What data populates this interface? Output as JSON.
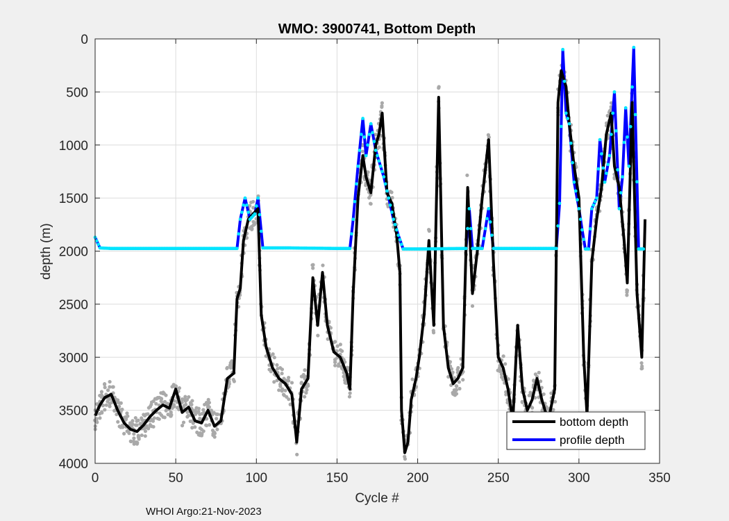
{
  "chart_data": {
    "type": "line",
    "title": "WMO: 3900741, Bottom Depth",
    "xlabel": "Cycle #",
    "ylabel": "depth (m)",
    "xlim": [
      0,
      350
    ],
    "ylim": [
      0,
      4000
    ],
    "y_reversed": true,
    "grid": true,
    "x_ticks": [
      0,
      50,
      100,
      150,
      200,
      250,
      300,
      350
    ],
    "y_ticks": [
      0,
      500,
      1000,
      1500,
      2000,
      2500,
      3000,
      3500,
      4000
    ],
    "legend_position": "bottom-right",
    "series": [
      {
        "name": "bottom depth",
        "color": "#000000",
        "x": [
          0,
          3,
          6,
          10,
          14,
          18,
          22,
          26,
          30,
          34,
          38,
          42,
          46,
          50,
          54,
          58,
          62,
          66,
          70,
          74,
          78,
          82,
          86,
          88,
          90,
          92,
          95,
          98,
          101,
          103,
          106,
          110,
          114,
          118,
          122,
          125,
          128,
          132,
          135,
          138,
          141,
          144,
          148,
          152,
          156,
          158,
          160,
          163,
          166,
          168,
          171,
          174,
          176,
          178,
          181,
          184,
          187,
          189,
          190,
          192,
          194,
          196,
          199,
          201,
          204,
          207,
          210,
          213,
          216,
          219,
          222,
          225,
          228,
          231,
          234,
          237,
          240,
          244,
          247,
          250,
          253,
          256,
          259,
          262,
          265,
          268,
          271,
          274,
          277,
          281,
          285,
          287,
          289,
          292,
          294,
          297,
          300,
          303,
          305,
          308,
          311,
          314,
          317,
          320,
          322,
          325,
          328,
          330,
          333,
          336,
          339,
          341
        ],
        "values": [
          3550,
          3450,
          3380,
          3350,
          3500,
          3620,
          3680,
          3700,
          3640,
          3560,
          3500,
          3450,
          3480,
          3300,
          3520,
          3470,
          3600,
          3620,
          3500,
          3650,
          3600,
          3200,
          3150,
          2450,
          2350,
          1900,
          1700,
          1650,
          1600,
          2600,
          2900,
          3100,
          3200,
          3250,
          3350,
          3800,
          3300,
          3200,
          2250,
          2700,
          2200,
          2700,
          2950,
          3000,
          3150,
          3300,
          2400,
          1500,
          1100,
          1300,
          1450,
          1000,
          900,
          700,
          1450,
          1550,
          1850,
          2200,
          3500,
          3900,
          3800,
          3400,
          3200,
          3000,
          2600,
          1900,
          2700,
          550,
          2700,
          3100,
          3250,
          3200,
          3100,
          1400,
          2400,
          2000,
          1500,
          950,
          2100,
          3000,
          3100,
          3300,
          3600,
          2700,
          3300,
          3500,
          3400,
          3200,
          3400,
          3600,
          3300,
          600,
          300,
          450,
          800,
          1200,
          1500,
          3000,
          3550,
          2100,
          1700,
          1400,
          900,
          700,
          1200,
          1400,
          1900,
          2300,
          600,
          2400,
          3000,
          1700
        ],
        "point_color": "#a9a9a9"
      },
      {
        "name": "profile depth",
        "color": "#0000ff",
        "x": [
          0,
          3,
          10,
          30,
          60,
          80,
          88,
          90,
          93,
          96,
          99,
          101,
          104,
          120,
          150,
          158,
          160,
          163,
          166,
          168,
          171,
          174,
          176,
          179,
          182,
          185,
          188,
          191,
          200,
          230,
          232,
          234,
          240,
          244,
          247,
          280,
          286,
          288,
          290,
          292,
          294,
          297,
          300,
          302,
          304,
          306,
          308,
          311,
          313,
          316,
          319,
          322,
          325,
          327,
          329,
          331,
          334,
          337,
          340
        ],
        "values": [
          1870,
          1970,
          1975,
          1975,
          1975,
          1975,
          1975,
          1700,
          1500,
          1700,
          1650,
          1500,
          1970,
          1970,
          1975,
          1975,
          1700,
          1200,
          750,
          1100,
          800,
          1050,
          1150,
          1300,
          1500,
          1700,
          1850,
          1980,
          1980,
          1975,
          1600,
          1975,
          1975,
          1600,
          1975,
          1975,
          1975,
          1550,
          100,
          700,
          800,
          1350,
          1600,
          1800,
          1980,
          1980,
          1600,
          1500,
          950,
          1350,
          1100,
          500,
          1600,
          1300,
          650,
          1200,
          80,
          1980,
          1980
        ],
        "point_color": "#00e5ff"
      }
    ],
    "footer_text": "WHOI Argo:21-Nov-2023"
  }
}
